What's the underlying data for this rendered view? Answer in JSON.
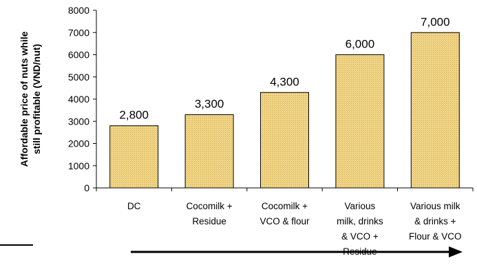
{
  "chart_data": {
    "type": "bar",
    "ylabel_lines": [
      "Affordable price of nuts while",
      "still profitable (VND/nut)"
    ],
    "categories": [
      [
        "DC"
      ],
      [
        "Cocomilk +",
        "Residue"
      ],
      [
        "Cocomilk +",
        "VCO & flour"
      ],
      [
        "Various",
        "milk, drinks",
        "& VCO +",
        "Residue"
      ],
      [
        "Various milk",
        "& drinks +",
        "Flour & VCO"
      ]
    ],
    "values": [
      2800,
      3300,
      4300,
      6000,
      7000
    ],
    "data_labels": [
      "2,800",
      "3,300",
      "4,300",
      "6,000",
      "7,000"
    ],
    "ylim": [
      0,
      8000
    ],
    "yticks": [
      0,
      1000,
      2000,
      3000,
      4000,
      5000,
      6000,
      7000,
      8000
    ],
    "grid": false,
    "bar_color": "#F2D383",
    "bar_hatch_color": "#C9A54A",
    "annotation": "arrow-right"
  }
}
